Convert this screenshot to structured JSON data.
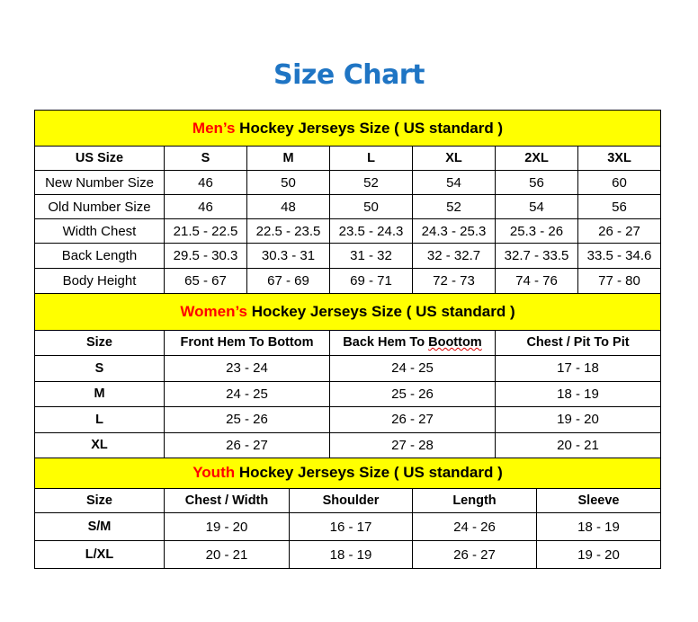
{
  "title": "Size Chart",
  "colors": {
    "title": "#1f75c4",
    "section_bg": "#ffff00",
    "highlight": "#ff0000"
  },
  "mens": {
    "highlight": "Men’s",
    "heading": " Hockey Jerseys Size ( US standard )",
    "columns": [
      "US Size",
      "S",
      "M",
      "L",
      "XL",
      "2XL",
      "3XL"
    ],
    "rows": [
      [
        "New Number Size",
        "46",
        "50",
        "52",
        "54",
        "56",
        "60"
      ],
      [
        "Old Number Size",
        "46",
        "48",
        "50",
        "52",
        "54",
        "56"
      ],
      [
        "Width Chest",
        "21.5 - 22.5",
        "22.5 - 23.5",
        "23.5 - 24.3",
        "24.3 - 25.3",
        "25.3 - 26",
        "26 - 27"
      ],
      [
        "Back Length",
        "29.5 - 30.3",
        "30.3 - 31",
        "31 - 32",
        "32 - 32.7",
        "32.7 - 33.5",
        "33.5 - 34.6"
      ],
      [
        "Body Height",
        "65 - 67",
        "67 - 69",
        "69 - 71",
        "72 - 73",
        "74 - 76",
        "77 - 80"
      ]
    ]
  },
  "womens": {
    "highlight": "Women’s",
    "heading": " Hockey Jerseys Size ( US standard )",
    "columns": [
      "Size",
      "Front Hem To Bottom",
      "Back Hem To Boottom",
      "Chest / Pit To Pit"
    ],
    "rows": [
      [
        "S",
        "23 - 24",
        "24 - 25",
        "17 - 18"
      ],
      [
        "M",
        "24 - 25",
        "25 - 26",
        "18 - 19"
      ],
      [
        "L",
        "25 - 26",
        "26 - 27",
        "19 - 20"
      ],
      [
        "XL",
        "26 - 27",
        "27 - 28",
        "20 - 21"
      ]
    ]
  },
  "youth": {
    "highlight": "Youth",
    "heading": " Hockey Jerseys Size ( US standard )",
    "columns": [
      "Size",
      "Chest / Width",
      "Shoulder",
      "Length",
      "Sleeve"
    ],
    "rows": [
      [
        "S/M",
        "19 - 20",
        "16 - 17",
        "24 - 26",
        "18 - 19"
      ],
      [
        "L/XL",
        "20 - 21",
        "18 - 19",
        "26 - 27",
        "19 - 20"
      ]
    ]
  }
}
